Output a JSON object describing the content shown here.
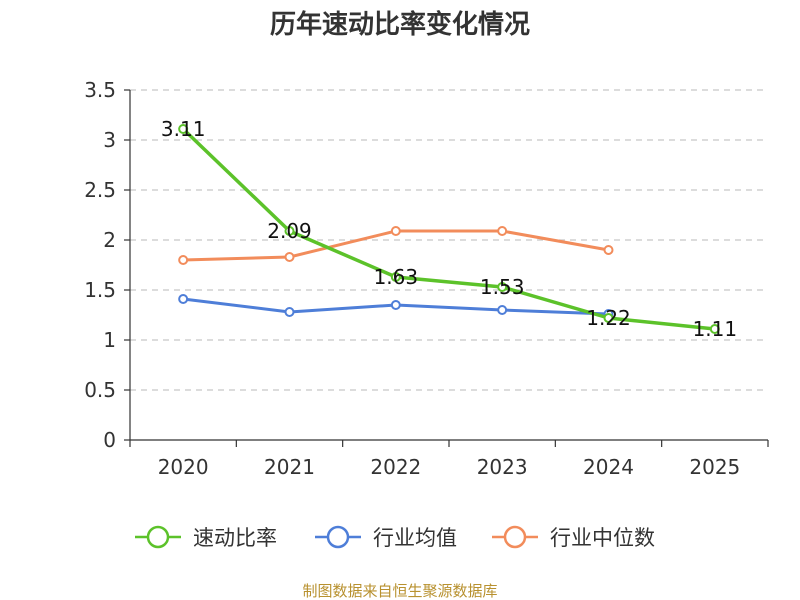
{
  "chart_data": {
    "type": "line",
    "title": "历年速动比率变化情况",
    "categories": [
      "2020",
      "2021",
      "2022",
      "2023",
      "2024",
      "2025"
    ],
    "ylim": [
      0,
      3.5
    ],
    "yticks": [
      0,
      0.5,
      1,
      1.5,
      2,
      2.5,
      3,
      3.5
    ],
    "ytick_labels": [
      "0",
      "0.5",
      "1",
      "1.5",
      "2",
      "2.5",
      "3",
      "3.5"
    ],
    "grid": true,
    "legend_position": "bottom",
    "series": [
      {
        "name": "速动比率",
        "color": "#5cc22a",
        "values": [
          3.11,
          2.09,
          1.63,
          1.53,
          1.22,
          1.11
        ],
        "labels": [
          "3.11",
          "2.09",
          "1.63",
          "1.53",
          "1.22",
          "1.11"
        ]
      },
      {
        "name": "行业均值",
        "color": "#4e7ed8",
        "values": [
          1.41,
          1.28,
          1.35,
          1.3,
          1.26,
          null
        ]
      },
      {
        "name": "行业中位数",
        "color": "#f28c5b",
        "values": [
          1.8,
          1.83,
          2.09,
          2.09,
          1.9,
          null
        ]
      }
    ],
    "source": "制图数据来自恒生聚源数据库"
  }
}
